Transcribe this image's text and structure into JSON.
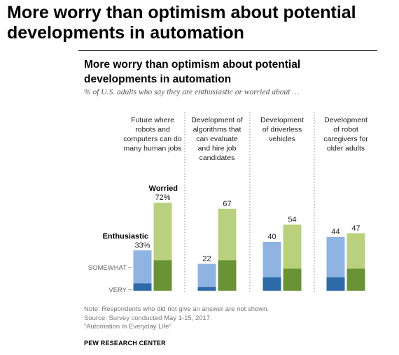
{
  "page": {
    "title": "More worry than optimism about potential developments in automation"
  },
  "notes": {
    "note": "Note: Respondents who did not give an answer are not shown.",
    "source": "Source: Survey conducted May 1-15, 2017.",
    "report": "“Automation in Everyday Life”",
    "org": "PEW RESEARCH CENTER"
  },
  "chart_data": {
    "type": "bar",
    "title": "More worry than optimism about potential developments in automation",
    "subtitle": "% of U.S. adults who say they are enthusiastic or worried about …",
    "categories": [
      [
        "Future where",
        "robots and",
        "computers can do",
        "many human jobs"
      ],
      [
        "Development of",
        "algorithms that",
        "can evaluate",
        "and hire job",
        "candidates"
      ],
      [
        "Development",
        "of driverless",
        "vehicles"
      ],
      [
        "Development",
        "of robot",
        "caregivers for",
        "older adults"
      ]
    ],
    "series": [
      {
        "name": "Enthusiastic",
        "values": [
          33,
          22,
          40,
          44
        ],
        "labels": [
          "33%",
          "22",
          "40",
          "44"
        ],
        "very": [
          6,
          3,
          11,
          11
        ],
        "colors": {
          "somewhat": "#8fb4e2",
          "very": "#2e6aa7"
        }
      },
      {
        "name": "Worried",
        "values": [
          72,
          67,
          54,
          47
        ],
        "labels": [
          "72%",
          "67",
          "54",
          "47"
        ],
        "very": [
          25,
          25,
          18,
          18
        ],
        "colors": {
          "somewhat": "#b9d17f",
          "very": "#6a9336"
        }
      }
    ],
    "stack_labels": {
      "somewhat": "SOMEWHAT",
      "very": "VERY"
    },
    "ylim": [
      0,
      100
    ],
    "grid": false
  }
}
